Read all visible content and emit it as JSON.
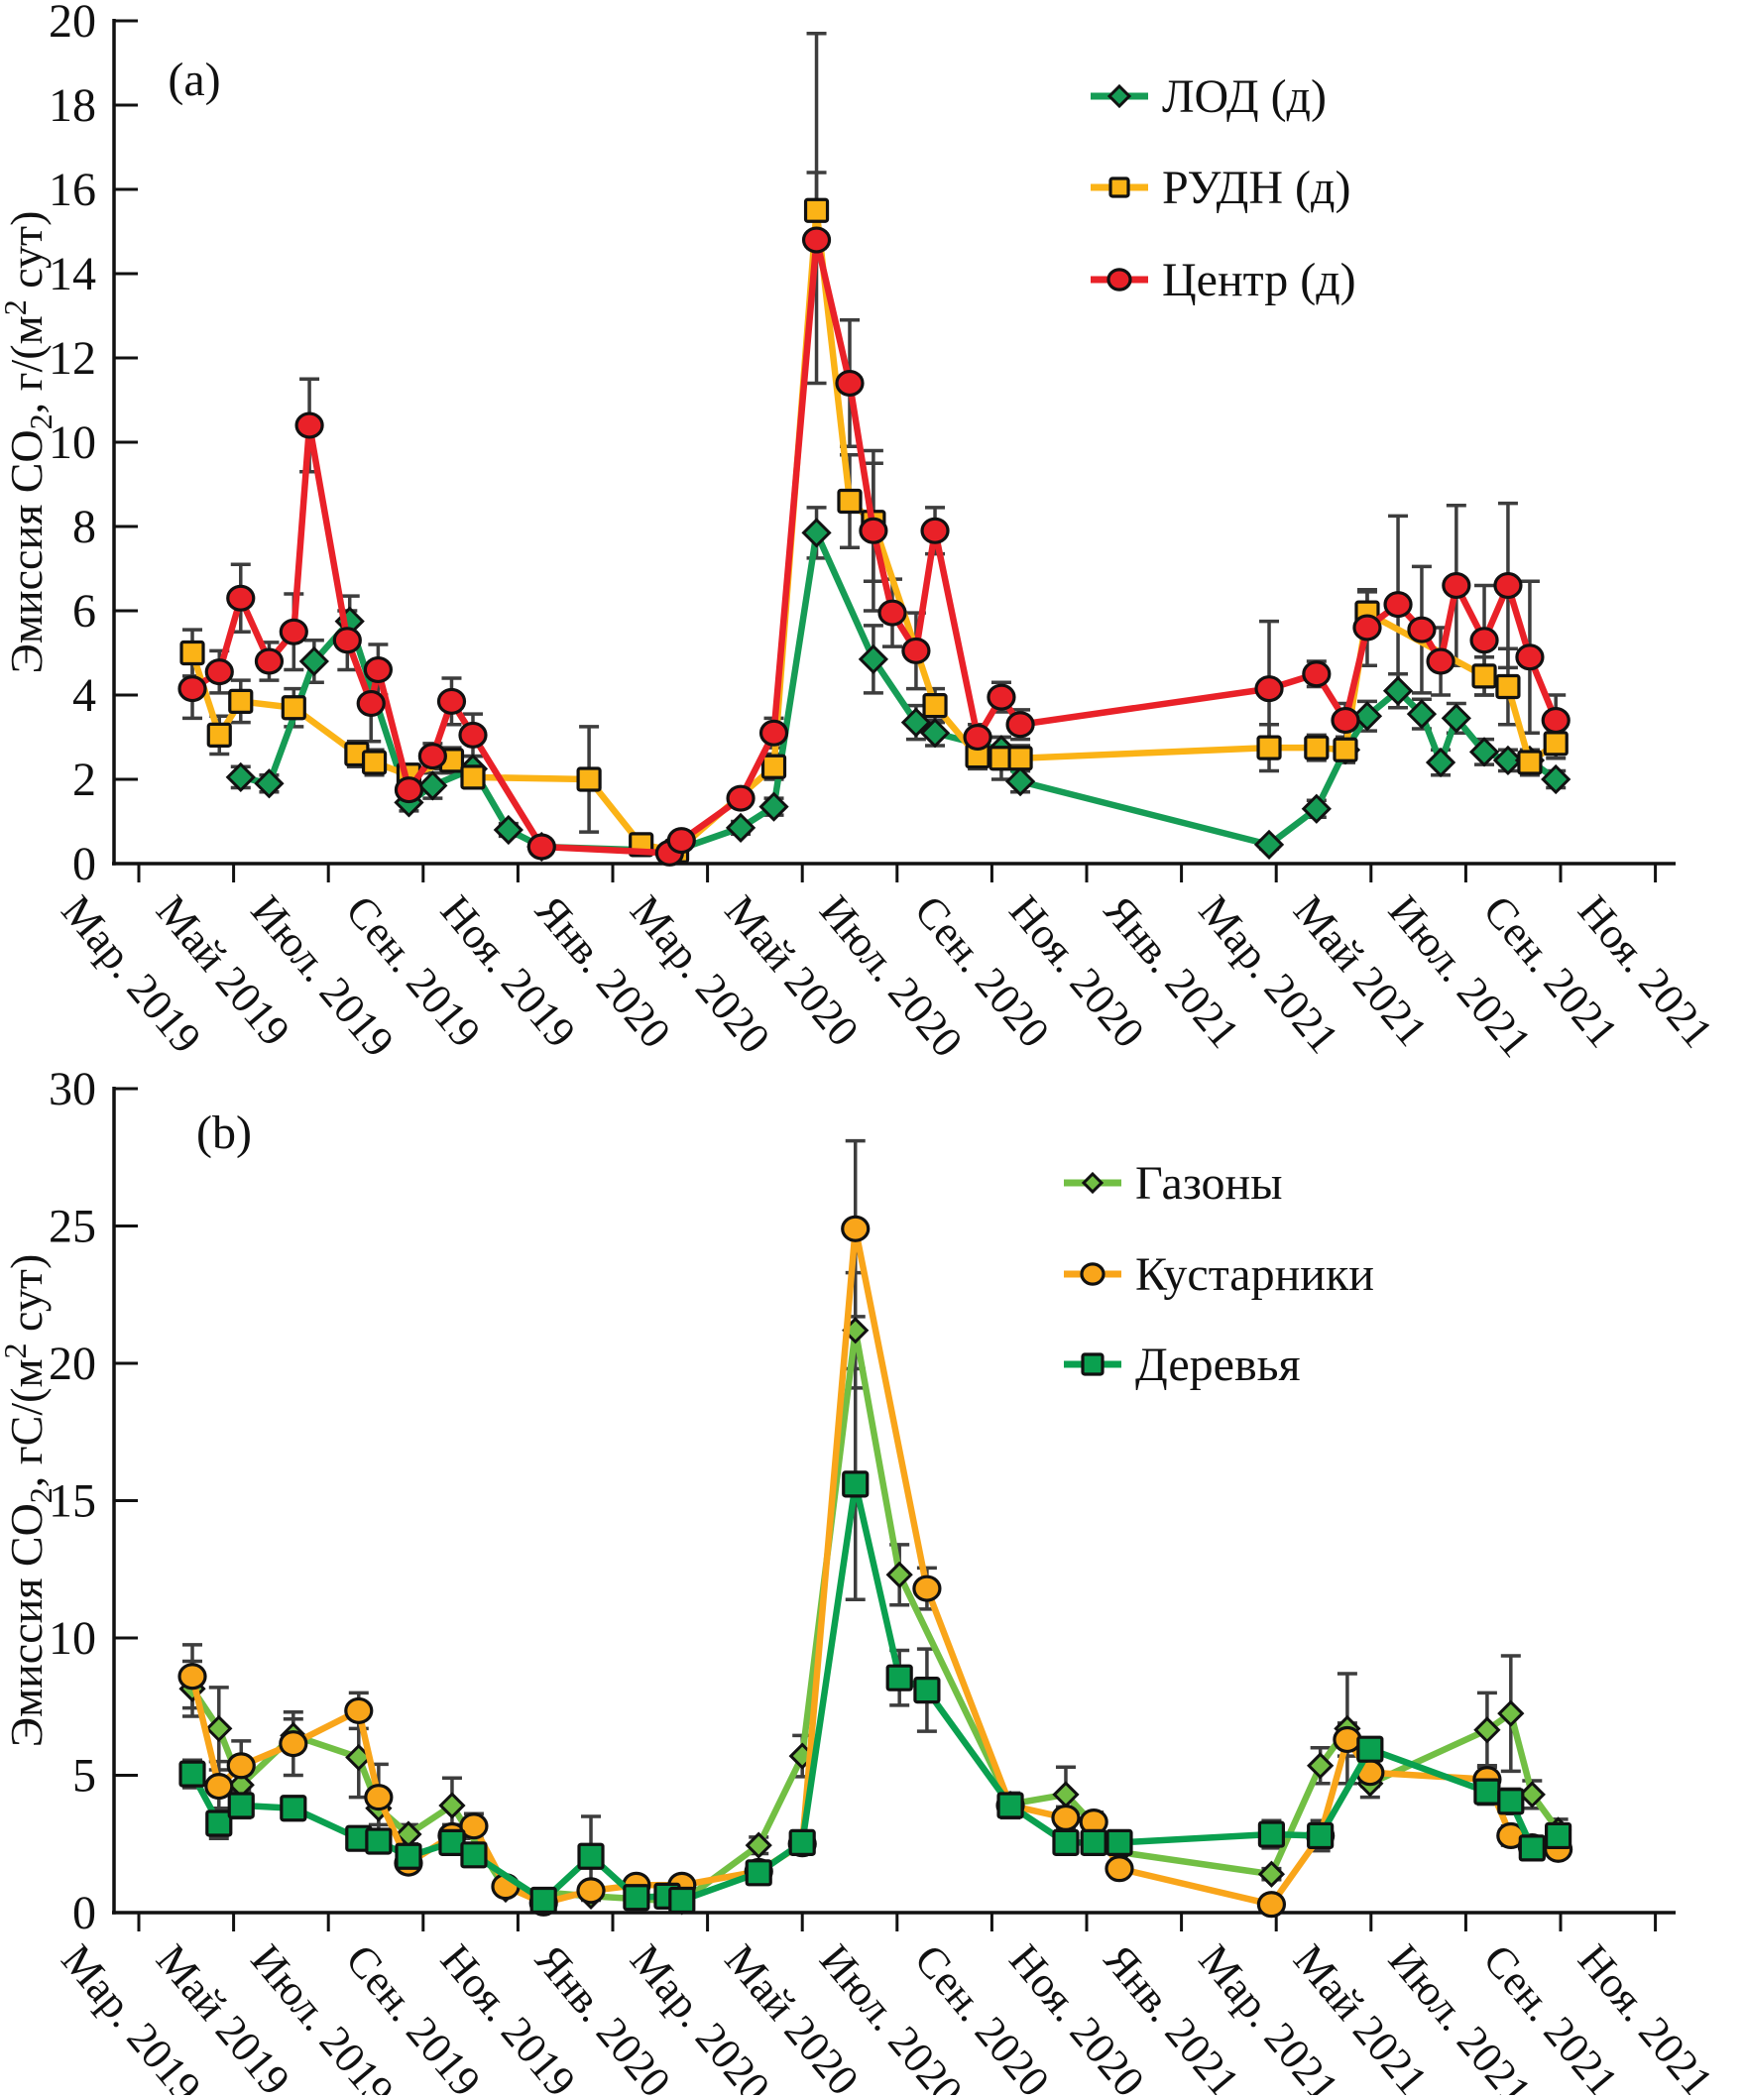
{
  "figure": {
    "background": "#ffffff",
    "error_bar_color": "#3d3d3d",
    "axis_color": "#111111"
  },
  "chart_data": [
    {
      "type": "line",
      "panel_label": "(a)",
      "ylabel_segments": [
        [
          "t",
          "Эмиссия CO"
        ],
        [
          "sub",
          "2"
        ],
        [
          "t",
          ", г/(м"
        ],
        [
          "sup",
          "2"
        ],
        [
          "t",
          " сут)"
        ]
      ],
      "ylim": [
        0,
        20
      ],
      "ytick_step": 2,
      "x_unit": "months since Mar 2019",
      "x_ticks": [
        "Мар. 2019",
        "Май 2019",
        "Июл. 2019",
        "Сен. 2019",
        "Ноя. 2019",
        "Янв. 2020",
        "Мар. 2020",
        "Май 2020",
        "Июл. 2020",
        "Сен. 2020",
        "Ноя. 2020",
        "Янв. 2021",
        "Мар. 2021",
        "Май 2021",
        "Июл. 2021",
        "Сен. 2021",
        "Ноя. 2021"
      ],
      "legend_position": "upper right",
      "series": [
        {
          "name": "ЛОД (д)",
          "color": "#169c55",
          "marker": "diamond",
          "points": [
            [
              2.15,
              2.05,
              0.25
            ],
            [
              2.75,
              1.9,
              0.2
            ],
            [
              3.7,
              4.8,
              0.5
            ],
            [
              4.45,
              5.75,
              0.6
            ],
            [
              5.7,
              1.45,
              0.2
            ],
            [
              6.2,
              1.85,
              0.3
            ],
            [
              7.05,
              2.25,
              0.3
            ],
            [
              7.8,
              0.8,
              0.15
            ],
            [
              8.5,
              0.4,
              0.1
            ],
            [
              11.3,
              0.3,
              0.1
            ],
            [
              12.7,
              0.85,
              0.15
            ],
            [
              13.4,
              1.35,
              0.2
            ],
            [
              14.3,
              7.85,
              0.6
            ],
            [
              15.5,
              4.85,
              0.8
            ],
            [
              16.4,
              3.35,
              0.4
            ],
            [
              16.8,
              3.1,
              0.3
            ],
            [
              18.2,
              2.7,
              0.3
            ],
            [
              18.6,
              1.95,
              0.25
            ],
            [
              23.85,
              0.45,
              0.1
            ],
            [
              24.85,
              1.3,
              0.2
            ],
            [
              25.46,
              2.7,
              0.3
            ],
            [
              25.92,
              3.5,
              0.35
            ],
            [
              26.57,
              4.1,
              0.4
            ],
            [
              27.07,
              3.55,
              0.35
            ],
            [
              27.47,
              2.4,
              0.3
            ],
            [
              27.8,
              3.45,
              0.35
            ],
            [
              28.39,
              2.65,
              0.3
            ],
            [
              28.89,
              2.45,
              0.25
            ],
            [
              29.35,
              2.45,
              0.25
            ],
            [
              29.9,
              2.0,
              0.2
            ]
          ]
        },
        {
          "name": "РУДН (д)",
          "color": "#fbb316",
          "marker": "square",
          "points": [
            [
              1.13,
              5.0,
              0.55
            ],
            [
              1.7,
              3.05,
              0.45
            ],
            [
              2.15,
              3.85,
              0.5
            ],
            [
              3.27,
              3.7,
              0.45
            ],
            [
              4.6,
              2.6,
              0.3
            ],
            [
              4.97,
              2.4,
              0.3
            ],
            [
              5.7,
              2.1,
              0.25
            ],
            [
              6.6,
              2.45,
              0.3
            ],
            [
              7.05,
              2.05,
              0.25
            ],
            [
              9.5,
              2.0,
              1.25
            ],
            [
              10.6,
              0.45,
              0.1
            ],
            [
              11.35,
              0.3,
              0.1
            ],
            [
              13.4,
              2.3,
              0.3
            ],
            [
              14.3,
              15.5,
              0.9
            ],
            [
              15.0,
              8.6,
              1.1
            ],
            [
              15.5,
              8.1,
              1.4
            ],
            [
              16.8,
              3.75,
              0.4
            ],
            [
              17.7,
              2.55,
              0.3
            ],
            [
              18.2,
              2.5,
              0.5
            ],
            [
              18.6,
              2.5,
              0.3
            ],
            [
              23.85,
              2.75,
              0.55
            ],
            [
              24.85,
              2.75,
              0.3
            ],
            [
              25.46,
              2.7,
              0.3
            ],
            [
              25.92,
              5.95,
              0.5
            ],
            [
              28.39,
              4.45,
              0.45
            ],
            [
              28.89,
              4.2,
              0.9
            ],
            [
              29.35,
              2.4,
              0.3
            ],
            [
              29.9,
              2.85,
              0.35
            ]
          ]
        },
        {
          "name": "Центр (д)",
          "color": "#e92128",
          "marker": "circle",
          "points": [
            [
              1.13,
              4.15,
              0.7
            ],
            [
              1.7,
              4.55,
              0.5
            ],
            [
              2.15,
              6.3,
              0.8
            ],
            [
              2.75,
              4.8,
              0.45
            ],
            [
              3.27,
              5.5,
              0.9
            ],
            [
              3.6,
              10.4,
              1.1
            ],
            [
              4.4,
              5.3,
              0.7
            ],
            [
              4.9,
              3.8,
              0.9
            ],
            [
              5.05,
              4.6,
              0.6
            ],
            [
              5.7,
              1.75,
              0.25
            ],
            [
              6.2,
              2.55,
              0.3
            ],
            [
              6.6,
              3.85,
              0.55
            ],
            [
              7.05,
              3.05,
              0.5
            ],
            [
              8.5,
              0.4,
              0.1
            ],
            [
              11.2,
              0.25,
              0.1
            ],
            [
              11.45,
              0.55,
              0.15
            ],
            [
              12.7,
              1.55,
              0.2
            ],
            [
              13.4,
              3.1,
              0.35
            ],
            [
              14.3,
              14.8,
              [
                3.4,
                4.9
              ]
            ],
            [
              15.0,
              11.4,
              1.5
            ],
            [
              15.5,
              7.9,
              1.9
            ],
            [
              15.9,
              5.95,
              0.8
            ],
            [
              16.4,
              5.05,
              0.9
            ],
            [
              16.8,
              7.9,
              0.55
            ],
            [
              17.7,
              3.0,
              0.3
            ],
            [
              18.2,
              3.95,
              0.35
            ],
            [
              18.6,
              3.3,
              0.35
            ],
            [
              23.85,
              4.15,
              1.6
            ],
            [
              24.85,
              4.5,
              0.3
            ],
            [
              25.46,
              3.4,
              0.4
            ],
            [
              25.92,
              5.6,
              0.9
            ],
            [
              26.57,
              6.15,
              2.1
            ],
            [
              27.07,
              5.55,
              1.5
            ],
            [
              27.47,
              4.8,
              0.8
            ],
            [
              27.8,
              6.6,
              1.9
            ],
            [
              28.39,
              5.3,
              1.3
            ],
            [
              28.89,
              6.6,
              1.95
            ],
            [
              29.35,
              4.9,
              1.8
            ],
            [
              29.9,
              3.4,
              0.6
            ]
          ]
        }
      ]
    },
    {
      "type": "line",
      "panel_label": "(b)",
      "ylabel_segments": [
        [
          "t",
          "Эмиссия CO"
        ],
        [
          "sub",
          "2"
        ],
        [
          "t",
          ", гС/(м"
        ],
        [
          "sup",
          "2"
        ],
        [
          "t",
          " сут)"
        ]
      ],
      "ylim": [
        0,
        30
      ],
      "ytick_step": 5,
      "x_unit": "months since Mar 2019",
      "x_ticks": [
        "Мар. 2019",
        "Май 2019",
        "Июл. 2019",
        "Сен. 2019",
        "Ноя. 2019",
        "Янв. 2020",
        "Мар. 2020",
        "Май 2020",
        "Июл. 2020",
        "Сен. 2020",
        "Ноя. 2020",
        "Янв. 2021",
        "Мар. 2021",
        "Май 2021",
        "Июл. 2021",
        "Сен. 2021",
        "Ноя. 2021"
      ],
      "legend_position": "upper right",
      "series": [
        {
          "name": "Газоны",
          "color": "#72bf44",
          "marker": "diamond",
          "points": [
            [
              1.13,
              8.15,
              1.0
            ],
            [
              1.69,
              6.7,
              1.5
            ],
            [
              2.16,
              4.65,
              0.55
            ],
            [
              3.26,
              6.45,
              0.6
            ],
            [
              4.64,
              5.65,
              1.45
            ],
            [
              5.06,
              3.8,
              0.6
            ],
            [
              5.69,
              2.85,
              0.35
            ],
            [
              6.61,
              3.9,
              1.0
            ],
            [
              7.74,
              0.85,
              0.2
            ],
            [
              9.54,
              0.6,
              0.15
            ],
            [
              11.46,
              0.4,
              0.1
            ],
            [
              13.08,
              2.45,
              0.3
            ],
            [
              14.0,
              5.7,
              0.75
            ],
            [
              15.12,
              21.2,
              2.1
            ],
            [
              16.05,
              12.3,
              1.1
            ],
            [
              18.39,
              3.95,
              0.4
            ],
            [
              19.56,
              4.3,
              1.0
            ],
            [
              20.69,
              2.2,
              0.3
            ],
            [
              23.9,
              1.4,
              0.2
            ],
            [
              24.93,
              5.35,
              0.65
            ],
            [
              25.5,
              6.7,
              2.0
            ],
            [
              25.98,
              4.7,
              0.5
            ],
            [
              28.45,
              6.65,
              1.35
            ],
            [
              28.95,
              7.25,
              2.1
            ],
            [
              29.4,
              4.3,
              0.5
            ],
            [
              29.95,
              3.0,
              0.4
            ]
          ]
        },
        {
          "name": "Кустарники",
          "color": "#f9a51a",
          "marker": "circle",
          "points": [
            [
              1.13,
              8.6,
              1.15
            ],
            [
              1.69,
              4.6,
              0.9
            ],
            [
              2.16,
              5.35,
              0.9
            ],
            [
              3.26,
              6.15,
              1.15
            ],
            [
              4.64,
              7.35,
              0.65
            ],
            [
              5.06,
              4.2,
              1.2
            ],
            [
              5.69,
              1.8,
              0.3
            ],
            [
              6.61,
              2.8,
              0.4
            ],
            [
              7.07,
              3.15,
              0.45
            ],
            [
              7.74,
              0.95,
              0.2
            ],
            [
              8.54,
              0.35,
              0.1
            ],
            [
              9.54,
              0.8,
              0.2
            ],
            [
              10.5,
              1.0,
              0.2
            ],
            [
              11.46,
              1.0,
              0.2
            ],
            [
              13.08,
              1.5,
              0.2
            ],
            [
              14.0,
              2.5,
              0.3
            ],
            [
              15.12,
              24.9,
              3.2
            ],
            [
              16.63,
              11.8,
              0.75
            ],
            [
              18.39,
              3.9,
              0.4
            ],
            [
              19.56,
              3.45,
              0.4
            ],
            [
              20.15,
              3.3,
              0.35
            ],
            [
              20.69,
              1.6,
              0.25
            ],
            [
              23.9,
              0.3,
              0.1
            ],
            [
              24.93,
              2.8,
              0.3
            ],
            [
              25.5,
              6.3,
              0.6
            ],
            [
              25.98,
              5.1,
              0.5
            ],
            [
              28.45,
              4.85,
              0.5
            ],
            [
              28.95,
              2.8,
              0.35
            ],
            [
              29.4,
              2.4,
              0.3
            ],
            [
              29.95,
              2.3,
              0.3
            ]
          ]
        },
        {
          "name": "Деревья",
          "color": "#0aa04f",
          "marker": "square",
          "points": [
            [
              1.13,
              5.05,
              0.5
            ],
            [
              1.69,
              3.25,
              0.55
            ],
            [
              2.16,
              3.9,
              0.45
            ],
            [
              3.26,
              3.8,
              0.4
            ],
            [
              4.64,
              2.7,
              0.3
            ],
            [
              5.06,
              2.6,
              0.3
            ],
            [
              5.69,
              2.05,
              0.3
            ],
            [
              6.61,
              2.55,
              0.3
            ],
            [
              7.07,
              2.1,
              0.3
            ],
            [
              8.54,
              0.45,
              0.1
            ],
            [
              9.54,
              2.05,
              1.45
            ],
            [
              10.5,
              0.55,
              0.15
            ],
            [
              11.15,
              0.6,
              0.15
            ],
            [
              11.46,
              0.45,
              0.1
            ],
            [
              13.08,
              1.45,
              0.25
            ],
            [
              14.0,
              2.55,
              0.3
            ],
            [
              15.12,
              15.6,
              4.2
            ],
            [
              16.05,
              8.55,
              1.0
            ],
            [
              16.63,
              8.1,
              1.5
            ],
            [
              18.39,
              3.9,
              0.45
            ],
            [
              19.56,
              2.55,
              0.3
            ],
            [
              20.15,
              2.55,
              0.3
            ],
            [
              20.69,
              2.55,
              0.3
            ],
            [
              23.9,
              2.85,
              0.5
            ],
            [
              24.93,
              2.8,
              0.55
            ],
            [
              25.98,
              5.95,
              0.4
            ],
            [
              28.45,
              4.4,
              0.45
            ],
            [
              28.95,
              4.05,
              0.45
            ],
            [
              29.4,
              2.35,
              0.35
            ],
            [
              29.95,
              2.8,
              0.35
            ]
          ]
        }
      ]
    }
  ]
}
